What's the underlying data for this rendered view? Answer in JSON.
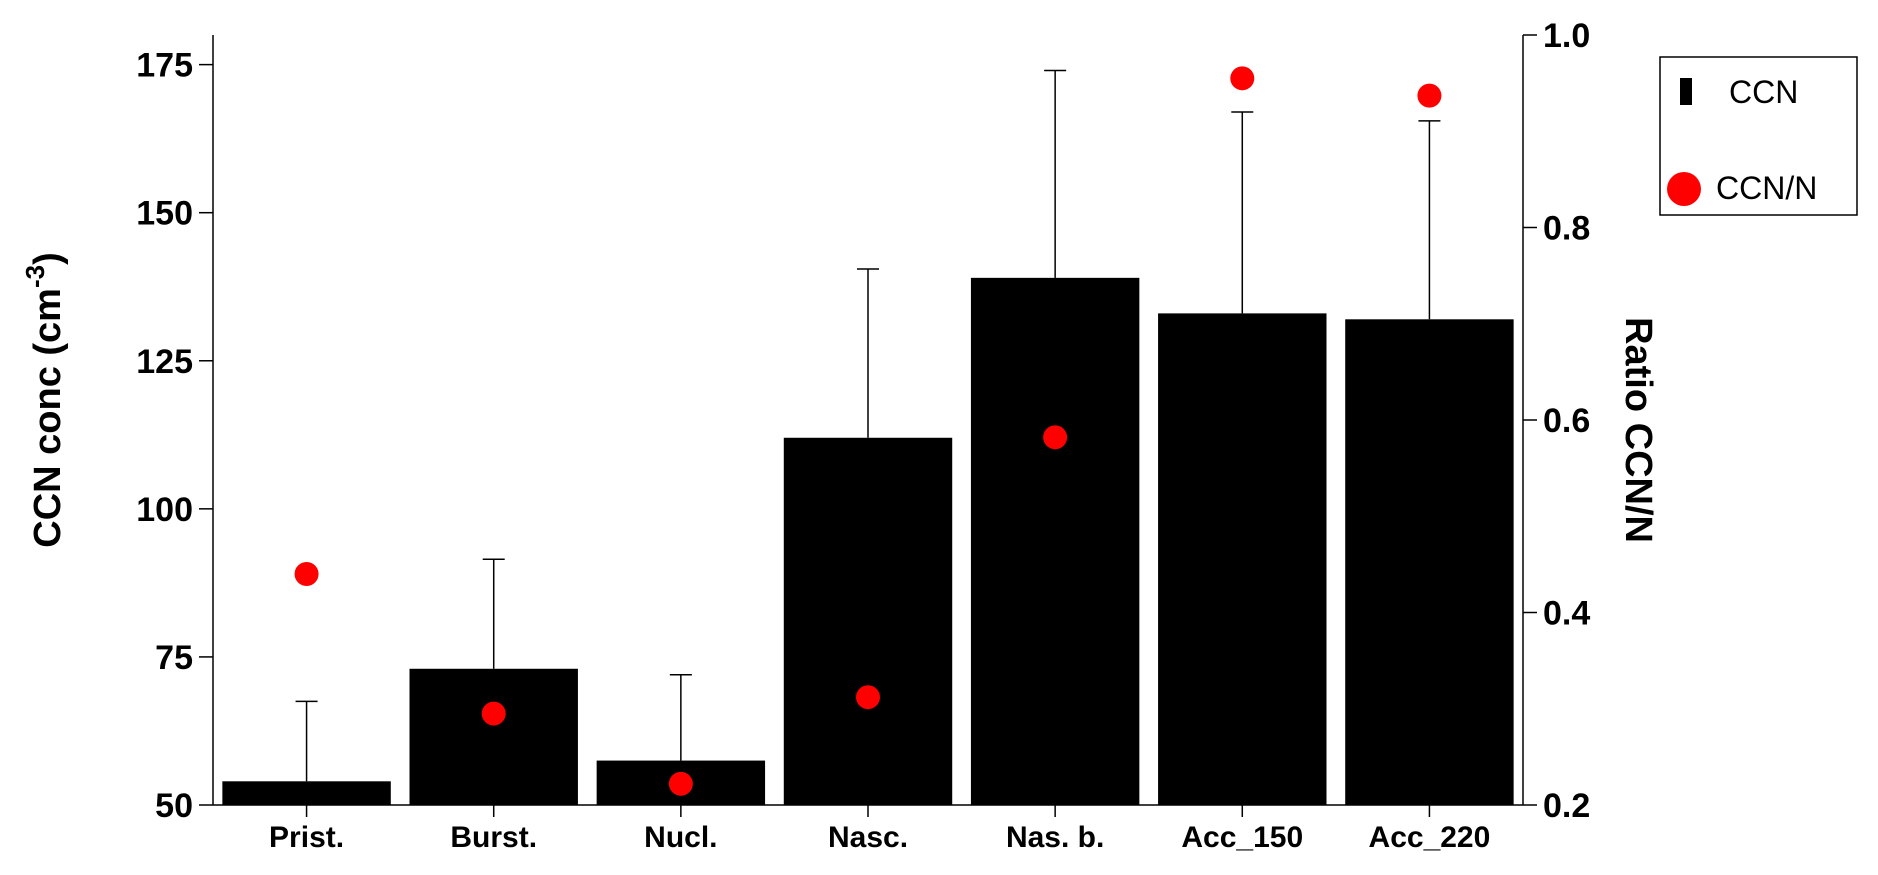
{
  "chart_data": {
    "type": "bar",
    "categories": [
      "Prist.",
      "Burst.",
      "Nucl.",
      "Nasc.",
      "Nas. b.",
      "Acc_150",
      "Acc_220"
    ],
    "series": [
      {
        "name": "CCN",
        "kind": "bar",
        "axis": "left",
        "values": [
          54,
          73,
          57.5,
          112,
          139,
          133,
          132
        ],
        "error_upper": [
          67.5,
          91.5,
          72,
          140.5,
          174,
          167,
          165.5
        ]
      },
      {
        "name": "CCN/N",
        "kind": "scatter",
        "axis": "right",
        "values": [
          0.44,
          0.295,
          0.222,
          0.312,
          0.582,
          0.955,
          0.937
        ]
      }
    ],
    "ylabel_left": {
      "text": "CCN conc (cm",
      "sup": "-3",
      "close": ")"
    },
    "ylabel_right": "Ratio CCN/N",
    "ylim_left": [
      50,
      180
    ],
    "yticks_left": [
      "50",
      "75",
      "100",
      "125",
      "150",
      "175"
    ],
    "ylim_right": [
      0.2,
      1.0
    ],
    "yticks_right": [
      "0.2",
      "0.4",
      "0.6",
      "0.8",
      "1.0"
    ],
    "legend_position": "right",
    "colors": {
      "bar": "#000000",
      "marker": "#ff0000"
    }
  }
}
